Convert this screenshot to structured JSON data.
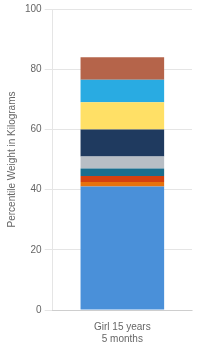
{
  "chart_data": {
    "type": "bar",
    "stacked": true,
    "categories": [
      "Girl 15 years 5 months"
    ],
    "ylabel": "Percentile Weight in Kilograms",
    "series": [
      {
        "color": "#4A90D9",
        "values": [
          41.0
        ]
      },
      {
        "color": "#E8720C",
        "values": [
          1.5
        ]
      },
      {
        "color": "#D44010",
        "values": [
          2.0
        ]
      },
      {
        "color": "#1A6E8E",
        "values": [
          2.5
        ]
      },
      {
        "color": "#B8BEC5",
        "values": [
          4.0
        ]
      },
      {
        "color": "#1F3A5F",
        "values": [
          9.0
        ]
      },
      {
        "color": "#FFE066",
        "values": [
          9.0
        ]
      },
      {
        "color": "#29ABE2",
        "values": [
          7.5
        ]
      },
      {
        "color": "#B5644A",
        "values": [
          7.5
        ]
      }
    ],
    "ylim": [
      0,
      100
    ],
    "yticks": [
      0,
      20,
      40,
      60,
      80,
      100
    ],
    "grid": true
  }
}
